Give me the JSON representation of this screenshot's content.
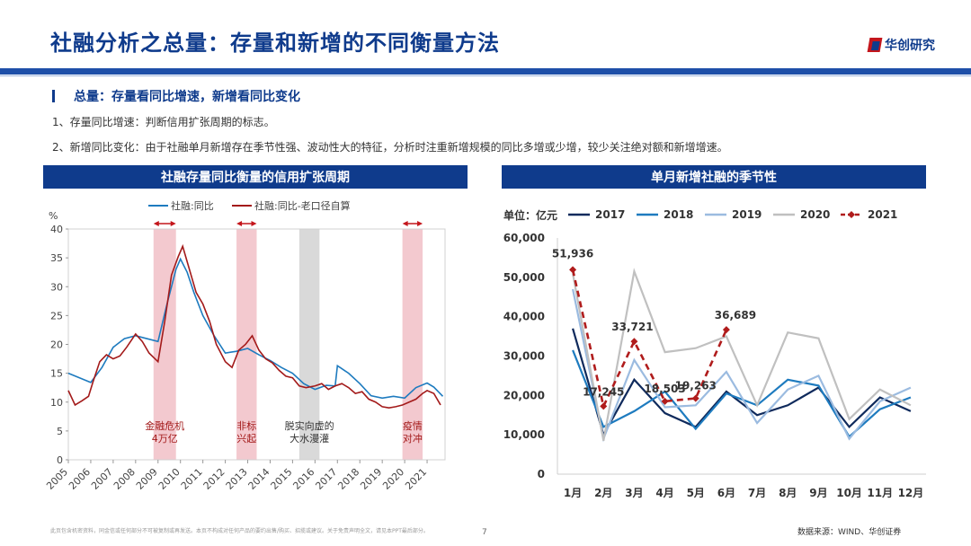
{
  "header": {
    "title": "社融分析之总量：存量和新增的不同衡量方法",
    "logo_text": "华创研究"
  },
  "section": {
    "subtitle": "总量：存量看同比增速，新增看同比变化",
    "point1": "1、存量同比增速：判断信用扩张周期的标志。",
    "point2": "2、新增同比变化：由于社融单月新增存在季节性强、波动性大的特征，分析时注重新增规模的同比多增或少增，较少关注绝对额和新增增速。"
  },
  "footer": {
    "disclaimer": "此页包含机密资料，同金信或任何部分不可被复制或再发送。本页不构成对任何产品的要约出售/购买、招揽或建议。关于免责声明全文，请见本PPT最后部分。",
    "page": "7",
    "source": "数据来源：WIND、华创证券"
  },
  "colors": {
    "navy": "#0f3b8c",
    "blue": "#1e7bbf",
    "red": "#a31a1a",
    "shade": "#f3c9cf",
    "gray_shade": "#d9d9d9"
  },
  "chart_data": [
    {
      "type": "line",
      "title": "社融存量同比衡量的信用扩张周期",
      "ylabel": "%",
      "ylim": [
        0,
        40
      ],
      "yticks": [
        0,
        5,
        10,
        15,
        20,
        25,
        30,
        35,
        40
      ],
      "xlim": [
        2005,
        2021.8
      ],
      "xticks": [
        "2005",
        "2006",
        "2007",
        "2008",
        "2009",
        "2010",
        "2011",
        "2012",
        "2013",
        "2014",
        "2015",
        "2016",
        "2017",
        "2018",
        "2019",
        "2020",
        "2021"
      ],
      "legend": [
        "社融:同比",
        "社融:同比-老口径自算"
      ],
      "series": [
        {
          "name": "社融:同比",
          "color": "#1e7bbf",
          "x": [
            2005.0,
            2005.5,
            2006.0,
            2006.5,
            2007.0,
            2007.5,
            2008.0,
            2008.5,
            2009.0,
            2009.4,
            2009.8,
            2010.0,
            2010.3,
            2010.6,
            2011.0,
            2011.5,
            2012.0,
            2012.5,
            2013.0,
            2013.5,
            2014.0,
            2014.5,
            2015.0,
            2015.5,
            2016.0,
            2016.5,
            2016.9,
            2017.0,
            2017.5,
            2018.0,
            2018.5,
            2019.0,
            2019.5,
            2020.0,
            2020.5,
            2021.0,
            2021.3,
            2021.7
          ],
          "y": [
            15,
            14.2,
            13.4,
            16,
            19.5,
            21,
            21.5,
            21,
            20.5,
            27,
            33,
            34.8,
            32.5,
            29,
            25,
            21.5,
            18.5,
            18.8,
            19.3,
            18.2,
            17.2,
            16,
            15,
            13.2,
            12.2,
            12.9,
            12.8,
            16.3,
            15,
            13.2,
            11.1,
            10.7,
            11,
            10.7,
            12.5,
            13.3,
            12.6,
            11
          ]
        },
        {
          "name": "社融:同比-老口径自算",
          "color": "#a31a1a",
          "x": [
            2005.0,
            2005.3,
            2005.6,
            2005.9,
            2006.1,
            2006.4,
            2006.7,
            2007.0,
            2007.3,
            2007.6,
            2008.0,
            2008.3,
            2008.6,
            2009.0,
            2009.3,
            2009.6,
            2009.9,
            2010.1,
            2010.4,
            2010.7,
            2011.0,
            2011.3,
            2011.6,
            2012.0,
            2012.3,
            2012.6,
            2012.9,
            2013.2,
            2013.5,
            2013.8,
            2014.1,
            2014.4,
            2014.7,
            2015.0,
            2015.3,
            2015.6,
            2016.0,
            2016.3,
            2016.6,
            2016.9,
            2017.2,
            2017.5,
            2017.8,
            2018.1,
            2018.4,
            2018.7,
            2019.0,
            2019.3,
            2019.6,
            2019.9,
            2020.2,
            2020.5,
            2020.8,
            2021.0,
            2021.3,
            2021.6
          ],
          "y": [
            12,
            9.5,
            10.2,
            11,
            13.5,
            17,
            18.2,
            17.5,
            18,
            19.5,
            21.8,
            20.5,
            18.5,
            17,
            24,
            32,
            35.2,
            37,
            33,
            29,
            27,
            24,
            20,
            17,
            16,
            19,
            20,
            21.5,
            19,
            17.5,
            16.8,
            15.5,
            14.5,
            14.2,
            12.8,
            12.5,
            12.8,
            13.2,
            12.2,
            12.8,
            13.2,
            12.5,
            11.5,
            11.8,
            10.5,
            10,
            9.2,
            9,
            9.2,
            9.5,
            10,
            10.5,
            11.5,
            12,
            11.5,
            9.5
          ]
        }
      ],
      "shaded": [
        {
          "from": 2008.8,
          "to": 2009.8,
          "kind": "red",
          "label": [
            "金融危机",
            "4万亿"
          ],
          "label_color": "#a31a1a"
        },
        {
          "from": 2012.5,
          "to": 2013.4,
          "kind": "red",
          "label": [
            "非标",
            "兴起"
          ],
          "label_color": "#a31a1a"
        },
        {
          "from": 2015.3,
          "to": 2016.2,
          "kind": "gray",
          "label": [
            "脱实向虚的",
            "大水漫灌"
          ],
          "label_color": "#333333"
        },
        {
          "from": 2019.9,
          "to": 2020.8,
          "kind": "red",
          "label": [
            "疫情",
            "对冲"
          ],
          "label_color": "#a31a1a"
        }
      ]
    },
    {
      "type": "line",
      "title": "单月新增社融的季节性",
      "unit_label": "单位：亿元",
      "ylim": [
        0,
        60000
      ],
      "yticks": [
        "0",
        "10,000",
        "20,000",
        "30,000",
        "40,000",
        "50,000",
        "60,000"
      ],
      "categories": [
        "1月",
        "2月",
        "3月",
        "4月",
        "5月",
        "6月",
        "7月",
        "8月",
        "9月",
        "10月",
        "11月",
        "12月"
      ],
      "series": [
        {
          "name": "2017",
          "color": "#0f2a5c",
          "dash": false,
          "values": [
            37000,
            10000,
            24000,
            15500,
            12000,
            21000,
            15000,
            17500,
            22000,
            12000,
            19500,
            16000
          ]
        },
        {
          "name": "2018",
          "color": "#1e7bbf",
          "dash": false,
          "values": [
            31500,
            12000,
            16000,
            21000,
            11500,
            20500,
            17500,
            24000,
            22500,
            9500,
            16500,
            19500
          ]
        },
        {
          "name": "2019",
          "color": "#9bbbe0",
          "dash": false,
          "values": [
            47000,
            9000,
            29000,
            17000,
            17500,
            26000,
            13000,
            21500,
            25000,
            9000,
            18500,
            22000
          ]
        },
        {
          "name": "2020",
          "color": "#c0c0c0",
          "dash": false,
          "values": [
            51000,
            8500,
            51500,
            31000,
            32000,
            35000,
            17500,
            36000,
            34500,
            14000,
            21500,
            17500
          ]
        },
        {
          "name": "2021",
          "color": "#b01c1c",
          "dash": true,
          "values": [
            51936,
            17245,
            33721,
            18503,
            19263,
            36689
          ]
        }
      ],
      "labels": [
        "51,936",
        "17,245",
        "33,721",
        "18,503",
        "19,263",
        "36,689"
      ]
    }
  ]
}
